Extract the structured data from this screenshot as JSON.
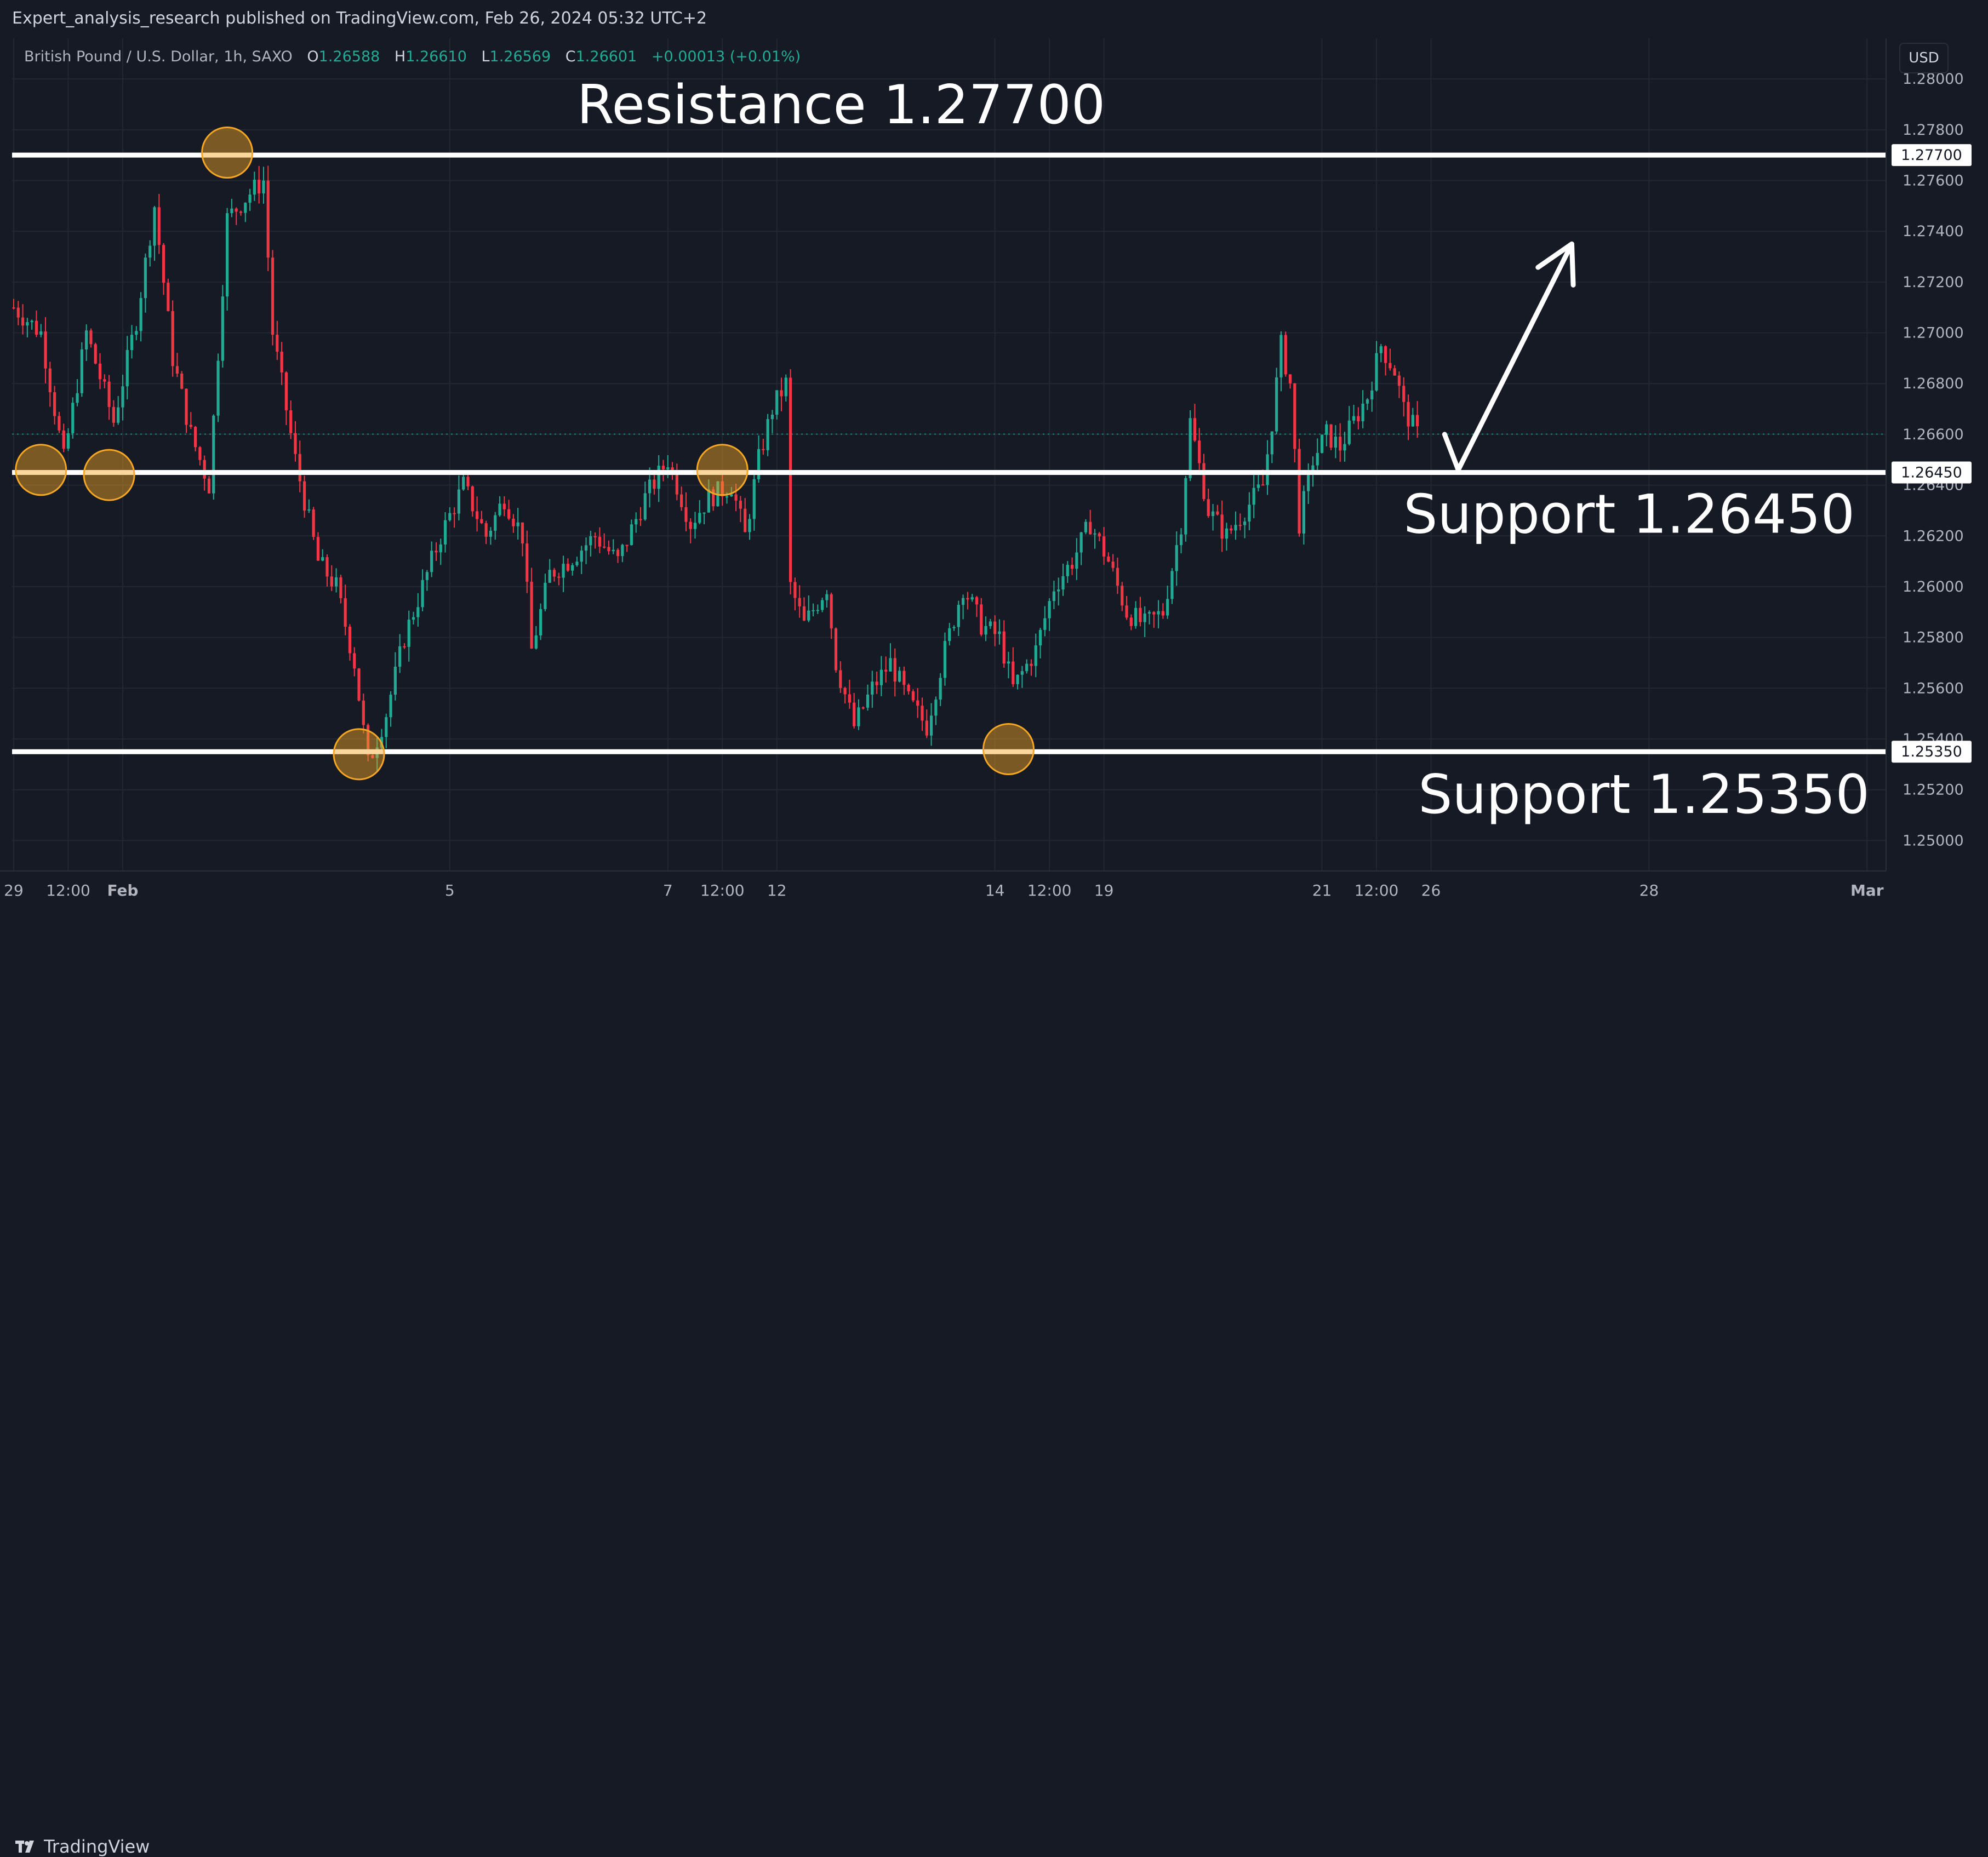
{
  "header": {
    "publisher": "Expert_analysis_research published on TradingView.com, Feb 26, 2024 05:32 UTC+2"
  },
  "legend": {
    "symbol": "British Pound / U.S. Dollar, 1h, SAXO",
    "o_label": "O",
    "o_value": "1.26588",
    "h_label": "H",
    "h_value": "1.26610",
    "l_label": "L",
    "l_value": "1.26569",
    "c_label": "C",
    "c_value": "1.26601",
    "change": "+0.00013 (+0.01%)"
  },
  "currency_button": "USD",
  "footer": {
    "brand": "TradingView"
  },
  "colors": {
    "up": "#22ab94",
    "down": "#f23645",
    "background": "#161a25",
    "grid": "#232734",
    "level_line": "#ffffff",
    "marker": "#f5a623"
  },
  "chart_data": {
    "type": "candlestick",
    "ylim": [
      1.2488,
      1.2816
    ],
    "y_ticks": [
      "1.28000",
      "1.27800",
      "1.27600",
      "1.27400",
      "1.27200",
      "1.27000",
      "1.26800",
      "1.26600",
      "1.26400",
      "1.26200",
      "1.26000",
      "1.25800",
      "1.25600",
      "1.25400",
      "1.25200",
      "1.25000"
    ],
    "x_ticks": [
      {
        "label": "29",
        "t": 0
      },
      {
        "label": "12:00",
        "t": 12
      },
      {
        "label": "Feb",
        "t": 24
      },
      {
        "label": "5",
        "t": 96
      },
      {
        "label": "7",
        "t": 144
      },
      {
        "label": "12:00",
        "t": 156
      },
      {
        "label": "12",
        "t": 168
      },
      {
        "label": "14",
        "t": 216
      },
      {
        "label": "12:00",
        "t": 228
      },
      {
        "label": "19",
        "t": 240
      },
      {
        "label": "21",
        "t": 288
      },
      {
        "label": "12:00",
        "t": 300
      },
      {
        "label": "26",
        "t": 312
      },
      {
        "label": "28",
        "t": 360
      },
      {
        "label": "Mar",
        "t": 408
      }
    ],
    "levels": [
      {
        "price": 1.277,
        "label": "Resistance 1.27700",
        "axis_label": "1.27700"
      },
      {
        "price": 1.2645,
        "label": "Support 1.26450",
        "axis_label": "1.26450"
      },
      {
        "price": 1.2535,
        "label": "Support 1.25350",
        "axis_label": "1.25350"
      }
    ],
    "last_price": 1.26601,
    "markers": [
      {
        "t": 6,
        "price": 1.2646
      },
      {
        "t": 21,
        "price": 1.2644
      },
      {
        "t": 47,
        "price": 1.2771
      },
      {
        "t": 76,
        "price": 1.2534
      },
      {
        "t": 156,
        "price": 1.2646
      },
      {
        "t": 219,
        "price": 1.2536
      }
    ],
    "projection": [
      {
        "t": 315,
        "price": 1.266
      },
      {
        "t": 318,
        "price": 1.2646
      },
      {
        "t": 343,
        "price": 1.2735
      }
    ],
    "path": [
      [
        0,
        1.271
      ],
      [
        6,
        1.27
      ],
      [
        11,
        1.265
      ],
      [
        16,
        1.27
      ],
      [
        22,
        1.2665
      ],
      [
        27,
        1.2705
      ],
      [
        31,
        1.275
      ],
      [
        35,
        1.269
      ],
      [
        39,
        1.266
      ],
      [
        43,
        1.264
      ],
      [
        47,
        1.2745
      ],
      [
        52,
        1.2755
      ],
      [
        55,
        1.276
      ],
      [
        57,
        1.27
      ],
      [
        62,
        1.265
      ],
      [
        67,
        1.261
      ],
      [
        71,
        1.26
      ],
      [
        75,
        1.257
      ],
      [
        78,
        1.253
      ],
      [
        82,
        1.255
      ],
      [
        86,
        1.258
      ],
      [
        90,
        1.26
      ],
      [
        94,
        1.262
      ],
      [
        99,
        1.264
      ],
      [
        104,
        1.262
      ],
      [
        108,
        1.2635
      ],
      [
        112,
        1.262
      ],
      [
        114,
        1.2575
      ],
      [
        118,
        1.2605
      ],
      [
        122,
        1.261
      ],
      [
        128,
        1.262
      ],
      [
        133,
        1.261
      ],
      [
        139,
        1.2635
      ],
      [
        144,
        1.265
      ],
      [
        149,
        1.2625
      ],
      [
        153,
        1.2635
      ],
      [
        158,
        1.264
      ],
      [
        161,
        1.262
      ],
      [
        164,
        1.265
      ],
      [
        167,
        1.267
      ],
      [
        170,
        1.268
      ],
      [
        171,
        1.26
      ],
      [
        174,
        1.2585
      ],
      [
        179,
        1.26
      ],
      [
        181,
        1.257
      ],
      [
        185,
        1.2545
      ],
      [
        189,
        1.256
      ],
      [
        193,
        1.257
      ],
      [
        197,
        1.2555
      ],
      [
        201,
        1.2545
      ],
      [
        205,
        1.2575
      ],
      [
        209,
        1.26
      ],
      [
        213,
        1.2585
      ],
      [
        217,
        1.258
      ],
      [
        220,
        1.256
      ],
      [
        225,
        1.2575
      ],
      [
        229,
        1.26
      ],
      [
        233,
        1.261
      ],
      [
        237,
        1.2625
      ],
      [
        241,
        1.261
      ],
      [
        245,
        1.259
      ],
      [
        249,
        1.2585
      ],
      [
        253,
        1.259
      ],
      [
        257,
        1.2625
      ],
      [
        259,
        1.2665
      ],
      [
        263,
        1.263
      ],
      [
        267,
        1.262
      ],
      [
        271,
        1.263
      ],
      [
        275,
        1.264
      ],
      [
        277,
        1.2665
      ],
      [
        279,
        1.2695
      ],
      [
        281,
        1.268
      ],
      [
        283,
        1.2625
      ],
      [
        286,
        1.265
      ],
      [
        289,
        1.266
      ],
      [
        292,
        1.2655
      ],
      [
        295,
        1.2665
      ],
      [
        298,
        1.2675
      ],
      [
        301,
        1.2695
      ],
      [
        304,
        1.2685
      ],
      [
        306,
        1.267
      ],
      [
        309,
        1.266
      ]
    ]
  }
}
